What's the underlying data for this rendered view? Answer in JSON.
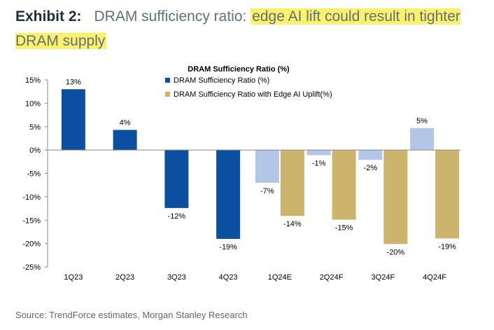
{
  "exhibit": {
    "label": "Exhibit 2:",
    "title_plain": "DRAM sufficiency ratio: ",
    "title_highlight": "edge AI lift could result in tighter DRAM supply"
  },
  "chart_data": {
    "type": "bar",
    "title": "DRAM Sufficiency Ratio (%)",
    "xlabel": "",
    "ylabel": "",
    "ylim": [
      -25,
      15
    ],
    "yticks": [
      "15%",
      "10%",
      "5%",
      "0%",
      "-5%",
      "-10%",
      "-15%",
      "-20%",
      "-25%"
    ],
    "categories": [
      "1Q23",
      "2Q23",
      "3Q23",
      "4Q23",
      "1Q24E",
      "2Q24F",
      "3Q24F",
      "4Q24F"
    ],
    "legend_position": "top-center",
    "series": [
      {
        "name": "DRAM Sufficiency Ratio (%)",
        "color_actual": "#0b4fa0",
        "color_forecast": "#b3c6e7",
        "values": [
          13,
          4.3,
          -12.4,
          -19,
          -7,
          -1.1,
          -2.1,
          4.7
        ],
        "labels": [
          "13%",
          "4%",
          "-12%",
          "-19%",
          "-7%",
          "-1%",
          "-2%",
          "5%"
        ],
        "actual_count": 4
      },
      {
        "name": "DRAM Sufficiency Ratio with Edge AI Uplift(%)",
        "color": "#cdb46c",
        "values": [
          null,
          null,
          null,
          null,
          -14.1,
          -14.9,
          -20.1,
          -18.9
        ],
        "labels": [
          null,
          null,
          null,
          null,
          "-14%",
          "-15%",
          "-20%",
          "-19%"
        ]
      }
    ]
  },
  "source": "Source: TrendForce estimates, Morgan Stanley Research",
  "colors": {
    "axis": "#888888",
    "text": "#000000"
  }
}
